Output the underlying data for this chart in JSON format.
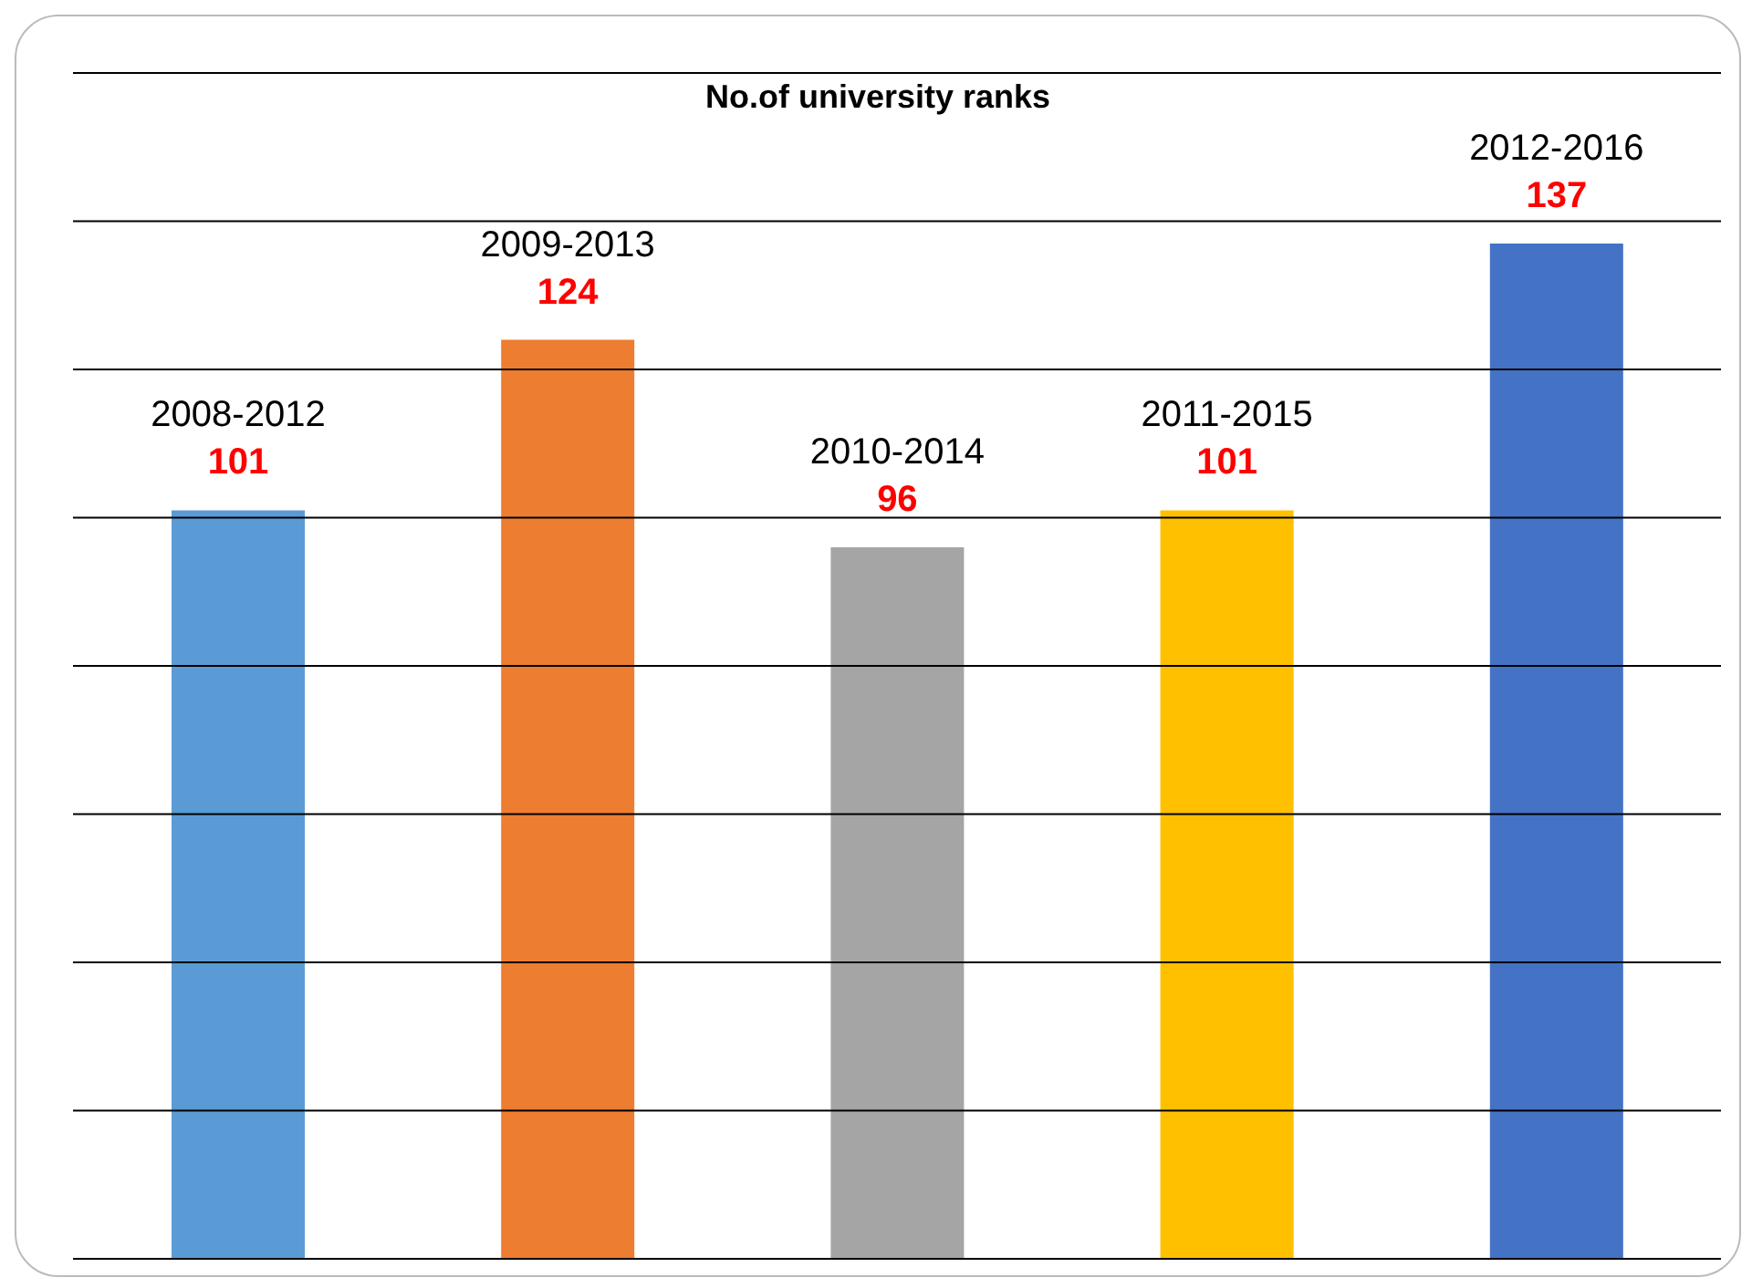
{
  "chart_data": {
    "type": "bar",
    "title": "No.of university ranks",
    "categories": [
      "2008-2012",
      "2009-2013",
      "2010-2014",
      "2011-2015",
      "2012-2016"
    ],
    "values": [
      101,
      124,
      96,
      101,
      137
    ],
    "colors": [
      "#5b9bd5",
      "#ed7d31",
      "#a5a5a5",
      "#ffc000",
      "#4472c4"
    ],
    "ylim": [
      0,
      160
    ],
    "yticks": [
      {
        "value": 0,
        "label": null
      },
      {
        "value": 20,
        "label": null
      },
      {
        "value": 40,
        "label": null
      },
      {
        "value": 60,
        "label": null
      },
      {
        "value": 80,
        "label": null
      },
      {
        "value": 100,
        "label": null
      },
      {
        "value": 120,
        "label": null
      },
      {
        "value": 140,
        "label": null
      },
      {
        "value": 160,
        "label": null
      }
    ],
    "grid": "y",
    "data_labels": true
  }
}
